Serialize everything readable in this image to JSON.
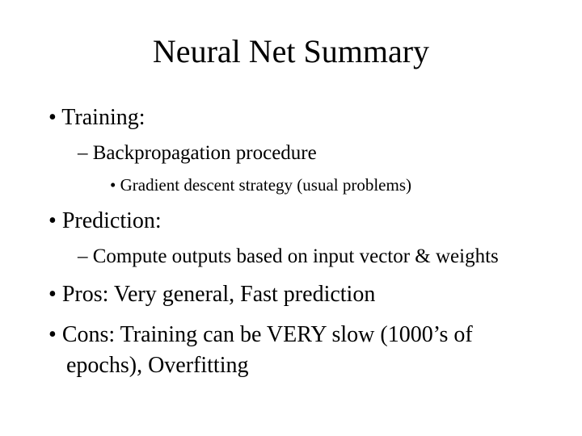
{
  "slide": {
    "title": "Neural Net Summary",
    "background_color": "#ffffff",
    "text_color": "#000000",
    "font_family": "Times New Roman",
    "title_fontsize": 40,
    "l1_fontsize": 28,
    "l2_fontsize": 25,
    "l3_fontsize": 21,
    "bullets": {
      "b1": "Training:",
      "b1_1": "Backpropagation procedure",
      "b1_1_1": "Gradient descent strategy (usual problems)",
      "b2": "Prediction:",
      "b2_1": "Compute outputs based on input vector & weights",
      "b3": "Pros: Very general, Fast prediction",
      "b4": "Cons: Training can be VERY slow (1000’s of epochs), Overfitting"
    }
  }
}
